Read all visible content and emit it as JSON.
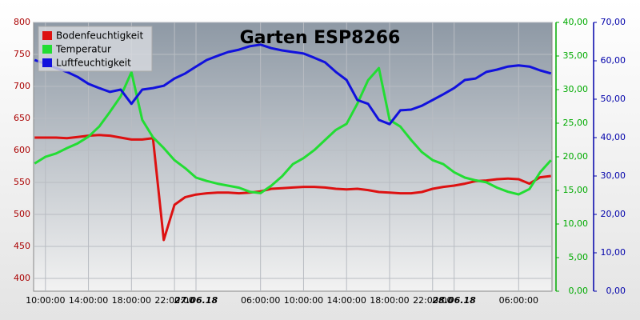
{
  "chart_data": {
    "type": "line",
    "title": "Garten ESP8266",
    "x": [
      9,
      10,
      11,
      12,
      13,
      14,
      15,
      16,
      17,
      18,
      19,
      20,
      21,
      22,
      23,
      24,
      25,
      26,
      27,
      28,
      29,
      30,
      31,
      32,
      33,
      34,
      35,
      36,
      37,
      38,
      39,
      40,
      41,
      42,
      43,
      44,
      45,
      46,
      47,
      48,
      49,
      50,
      51,
      52,
      53,
      54,
      55,
      56,
      57
    ],
    "xlim": [
      8.9,
      57.1
    ],
    "xticks": [
      {
        "value": 10,
        "label": "10:00:00"
      },
      {
        "value": 14,
        "label": "14:00:00"
      },
      {
        "value": 18,
        "label": "18:00:00"
      },
      {
        "value": 22,
        "label": "22:00:00"
      },
      {
        "value": 24,
        "label": "27.06.18"
      },
      {
        "value": 30,
        "label": "06:00:00"
      },
      {
        "value": 34,
        "label": "10:00:00"
      },
      {
        "value": 38,
        "label": "14:00:00"
      },
      {
        "value": 42,
        "label": "18:00:00"
      },
      {
        "value": 46,
        "label": "22:00:00"
      },
      {
        "value": 48,
        "label": "28.06.18"
      },
      {
        "value": 54,
        "label": "06:00:00"
      }
    ],
    "ylim": [
      380,
      800
    ],
    "yticks": [
      400,
      450,
      500,
      550,
      600,
      650,
      700,
      750,
      800
    ],
    "y2lim": [
      0,
      40
    ],
    "y2ticks": [
      {
        "value": 0,
        "label": "0,00"
      },
      {
        "value": 5,
        "label": "5,00"
      },
      {
        "value": 10,
        "label": "10,00"
      },
      {
        "value": 15,
        "label": "15,00"
      },
      {
        "value": 20,
        "label": "20,00"
      },
      {
        "value": 25,
        "label": "25,00"
      },
      {
        "value": 30,
        "label": "30,00"
      },
      {
        "value": 35,
        "label": "35,00"
      },
      {
        "value": 40,
        "label": "40,00"
      }
    ],
    "y3lim": [
      0,
      70
    ],
    "y3ticks": [
      {
        "value": 0,
        "label": "0,00"
      },
      {
        "value": 10,
        "label": "10,00"
      },
      {
        "value": 20,
        "label": "20,00"
      },
      {
        "value": 30,
        "label": "30,00"
      },
      {
        "value": 40,
        "label": "40,00"
      },
      {
        "value": 50,
        "label": "50,00"
      },
      {
        "value": 60,
        "label": "60,00"
      },
      {
        "value": 70,
        "label": "70,00"
      }
    ],
    "grid": true,
    "legend": "top-left",
    "series": [
      {
        "name": "Bodenfeuchtigkeit",
        "color": "#dd1111",
        "axis": "y",
        "values": [
          620,
          620,
          620,
          619,
          621,
          623,
          624,
          623,
          620,
          617,
          617,
          619,
          460,
          515,
          527,
          531,
          533,
          534,
          534,
          533,
          534,
          536,
          540,
          541,
          542,
          543,
          543,
          542,
          540,
          539,
          540,
          538,
          535,
          534,
          533,
          533,
          535,
          540,
          543,
          545,
          548,
          552,
          553,
          555,
          556,
          555,
          548,
          558,
          560
        ]
      },
      {
        "name": "Temperatur",
        "color": "#22dd33",
        "axis": "y2",
        "values": [
          19.0,
          20.0,
          20.5,
          21.3,
          22.0,
          23.0,
          24.5,
          26.7,
          29.0,
          32.6,
          25.5,
          22.9,
          21.3,
          19.5,
          18.3,
          16.9,
          16.4,
          16.0,
          15.7,
          15.4,
          14.8,
          14.6,
          15.7,
          17.1,
          18.9,
          19.8,
          21.0,
          22.5,
          24.0,
          24.9,
          27.9,
          31.4,
          33.2,
          25.5,
          24.5,
          22.5,
          20.7,
          19.5,
          18.9,
          17.7,
          16.9,
          16.5,
          16.2,
          15.4,
          14.8,
          14.4,
          15.2,
          17.7,
          19.5
        ]
      },
      {
        "name": "Luftfeuchtigkeit",
        "color": "#1111dd",
        "axis": "y3",
        "values": [
          60.2,
          59.2,
          58.1,
          57.1,
          55.8,
          54.0,
          52.9,
          51.9,
          52.5,
          48.8,
          52.5,
          52.9,
          53.5,
          55.4,
          56.7,
          58.5,
          60.2,
          61.3,
          62.3,
          62.9,
          63.8,
          64.2,
          63.3,
          62.7,
          62.3,
          61.9,
          60.8,
          59.6,
          57.1,
          55.0,
          49.8,
          48.8,
          44.6,
          43.5,
          47.1,
          47.3,
          48.3,
          49.8,
          51.3,
          52.9,
          55.0,
          55.4,
          57.1,
          57.7,
          58.5,
          58.8,
          58.5,
          57.5,
          56.7
        ]
      }
    ]
  }
}
